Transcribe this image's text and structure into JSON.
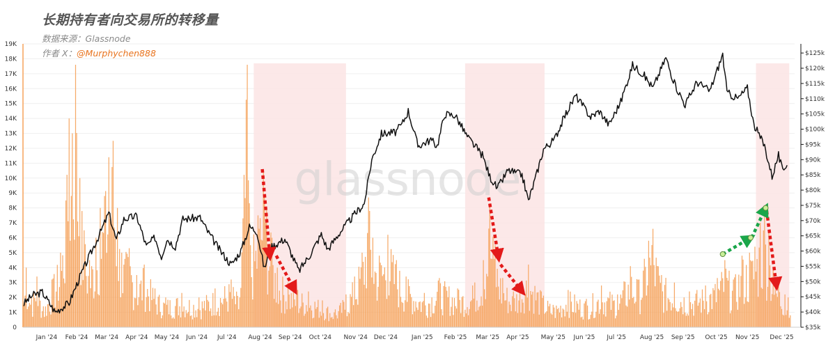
{
  "header": {
    "title": "长期持有者向交易所的转移量",
    "source_prefix": "数据来源：",
    "source_name": "Glassnode",
    "author_prefix": "作者 X：",
    "author_handle": "@Murphychen888"
  },
  "watermark": "glassnode",
  "colors": {
    "bar": "#f5a25a",
    "price_line": "#111111",
    "shade": "#fbe4e4",
    "red_arrow": "#e31a1a",
    "green_arrow": "#1aa64a",
    "marker_fill": "#c9ef9a",
    "marker_stroke": "#5a8a3a",
    "axis": "#111111"
  },
  "chart_data": {
    "type": "bar+line",
    "left_axis": {
      "ylim": [
        0,
        19000
      ],
      "ticks": [
        0,
        1000,
        2000,
        3000,
        4000,
        5000,
        6000,
        7000,
        8000,
        9000,
        10000,
        11000,
        12000,
        13000,
        14000,
        15000,
        16000,
        17000,
        18000,
        19000
      ],
      "tick_labels": [
        "0",
        "1K",
        "2K",
        "3K",
        "4K",
        "5K",
        "6K",
        "7K",
        "8K",
        "9K",
        "10K",
        "11K",
        "12K",
        "13K",
        "14K",
        "15K",
        "16K",
        "17K",
        "18K",
        "19K"
      ]
    },
    "right_axis": {
      "ylim": [
        35000,
        128000
      ],
      "ticks": [
        35000,
        40000,
        45000,
        50000,
        55000,
        60000,
        65000,
        70000,
        75000,
        80000,
        85000,
        90000,
        95000,
        100000,
        105000,
        110000,
        115000,
        120000,
        125000
      ],
      "tick_labels": [
        "$35k",
        "$40k",
        "$45k",
        "$50k",
        "$55k",
        "$60k",
        "$65k",
        "$70k",
        "$75k",
        "$80k",
        "$85k",
        "$90k",
        "$95k",
        "$100k",
        "$105k",
        "$110k",
        "$115k",
        "$120k",
        "$125k"
      ]
    },
    "x_axis": {
      "start": "2023-12-24",
      "end": "2025-12-12",
      "ticks": [
        {
          "date": "2024-01-15",
          "label": "Jan '24"
        },
        {
          "date": "2024-02-12",
          "label": "Feb '24"
        },
        {
          "date": "2024-03-11",
          "label": "Mar '24"
        },
        {
          "date": "2024-04-08",
          "label": "Apr '24"
        },
        {
          "date": "2024-05-06",
          "label": "May '24"
        },
        {
          "date": "2024-06-03",
          "label": "Jun '24"
        },
        {
          "date": "2024-07-01",
          "label": "Jul '24"
        },
        {
          "date": "2024-08-01",
          "label": "Aug '24"
        },
        {
          "date": "2024-08-29",
          "label": "Sep '24"
        },
        {
          "date": "2024-09-26",
          "label": "Oct '24"
        },
        {
          "date": "2024-10-29",
          "label": "Nov '24"
        },
        {
          "date": "2024-11-26",
          "label": "Dec '24"
        },
        {
          "date": "2024-12-30",
          "label": "Jan '25"
        },
        {
          "date": "2025-01-30",
          "label": "Feb '25"
        },
        {
          "date": "2025-03-01",
          "label": "Mar '25"
        },
        {
          "date": "2025-03-29",
          "label": "Apr '25"
        },
        {
          "date": "2025-05-01",
          "label": "May '25"
        },
        {
          "date": "2025-05-30",
          "label": "Jun '25"
        },
        {
          "date": "2025-06-29",
          "label": "Jul '25"
        },
        {
          "date": "2025-08-01",
          "label": "Aug '25"
        },
        {
          "date": "2025-08-30",
          "label": "Sep '25"
        },
        {
          "date": "2025-09-30",
          "label": "Oct '25"
        },
        {
          "date": "2025-10-29",
          "label": "Nov '25"
        },
        {
          "date": "2025-11-30",
          "label": "Dec '25"
        }
      ]
    },
    "shaded_regions": [
      {
        "start": "2024-07-26",
        "end": "2024-10-20"
      },
      {
        "start": "2025-02-08",
        "end": "2025-04-23"
      },
      {
        "start": "2025-11-06",
        "end": "2025-12-07"
      }
    ],
    "price_series": {
      "unit": "USD",
      "points": [
        [
          "2023-12-24",
          42500
        ],
        [
          "2024-01-02",
          45500
        ],
        [
          "2024-01-11",
          46500
        ],
        [
          "2024-01-23",
          40000
        ],
        [
          "2024-02-05",
          43000
        ],
        [
          "2024-02-15",
          51500
        ],
        [
          "2024-02-28",
          61500
        ],
        [
          "2024-03-05",
          66000
        ],
        [
          "2024-03-13",
          72500
        ],
        [
          "2024-03-20",
          63500
        ],
        [
          "2024-03-27",
          70500
        ],
        [
          "2024-04-08",
          71500
        ],
        [
          "2024-04-17",
          61500
        ],
        [
          "2024-04-25",
          64500
        ],
        [
          "2024-05-01",
          58000
        ],
        [
          "2024-05-06",
          64000
        ],
        [
          "2024-05-14",
          61500
        ],
        [
          "2024-05-21",
          70500
        ],
        [
          "2024-06-06",
          71000
        ],
        [
          "2024-06-13",
          66500
        ],
        [
          "2024-06-24",
          60500
        ],
        [
          "2024-07-05",
          55500
        ],
        [
          "2024-07-14",
          60000
        ],
        [
          "2024-07-22",
          68000
        ],
        [
          "2024-07-29",
          66500
        ],
        [
          "2024-08-05",
          54000
        ],
        [
          "2024-08-10",
          61000
        ],
        [
          "2024-08-24",
          64000
        ],
        [
          "2024-09-06",
          53500
        ],
        [
          "2024-09-16",
          58500
        ],
        [
          "2024-09-27",
          65500
        ],
        [
          "2024-10-03",
          60500
        ],
        [
          "2024-10-14",
          66000
        ],
        [
          "2024-10-21",
          69000
        ],
        [
          "2024-10-29",
          72500
        ],
        [
          "2024-11-06",
          75500
        ],
        [
          "2024-11-13",
          90000
        ],
        [
          "2024-11-22",
          98500
        ],
        [
          "2024-12-05",
          99000
        ],
        [
          "2024-12-11",
          101500
        ],
        [
          "2024-12-17",
          106000
        ],
        [
          "2024-12-26",
          94500
        ],
        [
          "2025-01-07",
          96500
        ],
        [
          "2025-01-13",
          94500
        ],
        [
          "2025-01-20",
          105000
        ],
        [
          "2025-01-30",
          104500
        ],
        [
          "2025-02-10",
          97500
        ],
        [
          "2025-02-24",
          91500
        ],
        [
          "2025-03-03",
          84500
        ],
        [
          "2025-03-10",
          80500
        ],
        [
          "2025-03-20",
          86500
        ],
        [
          "2025-04-02",
          85000
        ],
        [
          "2025-04-08",
          76500
        ],
        [
          "2025-04-15",
          84500
        ],
        [
          "2025-04-22",
          93500
        ],
        [
          "2025-05-02",
          96500
        ],
        [
          "2025-05-12",
          104500
        ],
        [
          "2025-05-22",
          111000
        ],
        [
          "2025-06-05",
          104000
        ],
        [
          "2025-06-13",
          106000
        ],
        [
          "2025-06-22",
          101500
        ],
        [
          "2025-07-03",
          109000
        ],
        [
          "2025-07-14",
          121000
        ],
        [
          "2025-07-24",
          118000
        ],
        [
          "2025-08-02",
          113500
        ],
        [
          "2025-08-14",
          123500
        ],
        [
          "2025-08-22",
          115000
        ],
        [
          "2025-09-01",
          108000
        ],
        [
          "2025-09-12",
          115500
        ],
        [
          "2025-09-24",
          112500
        ],
        [
          "2025-10-06",
          124500
        ],
        [
          "2025-10-10",
          112000
        ],
        [
          "2025-10-20",
          110000
        ],
        [
          "2025-10-29",
          113500
        ],
        [
          "2025-11-04",
          101500
        ],
        [
          "2025-11-14",
          94500
        ],
        [
          "2025-11-21",
          84500
        ],
        [
          "2025-11-27",
          91500
        ],
        [
          "2025-12-01",
          86000
        ],
        [
          "2025-12-05",
          89000
        ]
      ]
    },
    "volume_series": {
      "unit": "BTC",
      "peaks": [
        [
          "2023-12-24",
          1500
        ],
        [
          "2023-12-27",
          4000
        ],
        [
          "2024-01-01",
          2000
        ],
        [
          "2024-01-06",
          3400
        ],
        [
          "2024-01-12",
          1400
        ],
        [
          "2024-01-20",
          3200
        ],
        [
          "2024-01-28",
          5000
        ],
        [
          "2024-02-02",
          8500
        ],
        [
          "2024-02-05",
          14000
        ],
        [
          "2024-02-08",
          13000
        ],
        [
          "2024-02-11",
          17600
        ],
        [
          "2024-02-15",
          10000
        ],
        [
          "2024-02-19",
          6500
        ],
        [
          "2024-02-24",
          4500
        ],
        [
          "2024-03-01",
          6000
        ],
        [
          "2024-03-05",
          8000
        ],
        [
          "2024-03-09",
          8800
        ],
        [
          "2024-03-13",
          11400
        ],
        [
          "2024-03-17",
          12500
        ],
        [
          "2024-03-21",
          8000
        ],
        [
          "2024-03-25",
          5000
        ],
        [
          "2024-04-01",
          5300
        ],
        [
          "2024-04-08",
          3500
        ],
        [
          "2024-04-15",
          4200
        ],
        [
          "2024-04-25",
          2600
        ],
        [
          "2024-05-05",
          2000
        ],
        [
          "2024-05-20",
          2300
        ],
        [
          "2024-06-05",
          2000
        ],
        [
          "2024-06-20",
          2600
        ],
        [
          "2024-07-05",
          3200
        ],
        [
          "2024-07-13",
          2000
        ],
        [
          "2024-07-20",
          17600
        ],
        [
          "2024-07-23",
          5500
        ],
        [
          "2024-07-30",
          7500
        ],
        [
          "2024-08-04",
          10600
        ],
        [
          "2024-08-07",
          8000
        ],
        [
          "2024-08-12",
          6000
        ],
        [
          "2024-08-17",
          4000
        ],
        [
          "2024-08-27",
          3000
        ],
        [
          "2024-09-05",
          2500
        ],
        [
          "2024-09-15",
          2400
        ],
        [
          "2024-09-28",
          1800
        ],
        [
          "2024-10-10",
          1200
        ],
        [
          "2024-10-20",
          2200
        ],
        [
          "2024-10-28",
          3400
        ],
        [
          "2024-11-04",
          5000
        ],
        [
          "2024-11-10",
          8700
        ],
        [
          "2024-11-14",
          6000
        ],
        [
          "2024-11-20",
          4800
        ],
        [
          "2024-11-28",
          6200
        ],
        [
          "2024-12-06",
          4500
        ],
        [
          "2024-12-15",
          3400
        ],
        [
          "2025-01-01",
          2300
        ],
        [
          "2025-01-15",
          3300
        ],
        [
          "2025-02-01",
          2600
        ],
        [
          "2025-02-15",
          2800
        ],
        [
          "2025-02-25",
          4500
        ],
        [
          "2025-03-03",
          8300
        ],
        [
          "2025-03-08",
          5500
        ],
        [
          "2025-03-15",
          3300
        ],
        [
          "2025-03-25",
          2400
        ],
        [
          "2025-04-08",
          4200
        ],
        [
          "2025-04-20",
          2400
        ],
        [
          "2025-05-01",
          1500
        ],
        [
          "2025-05-15",
          2500
        ],
        [
          "2025-06-01",
          1900
        ],
        [
          "2025-06-15",
          2800
        ],
        [
          "2025-06-30",
          2200
        ],
        [
          "2025-07-12",
          4100
        ],
        [
          "2025-07-20",
          3200
        ],
        [
          "2025-07-29",
          5800
        ],
        [
          "2025-08-02",
          6600
        ],
        [
          "2025-08-10",
          3500
        ],
        [
          "2025-08-22",
          3000
        ],
        [
          "2025-09-05",
          2400
        ],
        [
          "2025-09-20",
          2800
        ],
        [
          "2025-10-01",
          3300
        ],
        [
          "2025-10-08",
          4500
        ],
        [
          "2025-10-16",
          3200
        ],
        [
          "2025-10-24",
          4800
        ],
        [
          "2025-10-31",
          5000
        ],
        [
          "2025-11-05",
          5400
        ],
        [
          "2025-11-10",
          7000
        ],
        [
          "2025-11-14",
          7700
        ],
        [
          "2025-11-18",
          6400
        ],
        [
          "2025-11-22",
          4000
        ],
        [
          "2025-11-27",
          3000
        ],
        [
          "2025-12-03",
          2200
        ],
        [
          "2025-12-06",
          2000
        ],
        [
          "2025-12-08",
          800
        ]
      ]
    },
    "annotations": {
      "red_dashed_arrows": [
        [
          [
            "2024-08-03",
            10600
          ],
          [
            "2024-08-10",
            4800
          ]
        ],
        [
          [
            "2024-08-16",
            4800
          ],
          [
            "2024-09-02",
            2500
          ]
        ],
        [
          [
            "2025-03-02",
            8700
          ],
          [
            "2025-03-11",
            4700
          ]
        ],
        [
          [
            "2025-03-13",
            4200
          ],
          [
            "2025-04-02",
            2400
          ]
        ],
        [
          [
            "2025-11-16",
            7800
          ],
          [
            "2025-11-25",
            2800
          ]
        ]
      ],
      "green_dashed_arrows": [
        [
          [
            "2025-10-06",
            4900
          ],
          [
            "2025-11-01",
            6000
          ]
        ],
        [
          [
            "2025-11-02",
            6000
          ],
          [
            "2025-11-15",
            8000
          ]
        ]
      ],
      "markers": [
        [
          "2025-10-06",
          4900
        ],
        [
          "2025-11-01",
          6000
        ],
        [
          "2025-11-15",
          8000
        ]
      ]
    }
  }
}
